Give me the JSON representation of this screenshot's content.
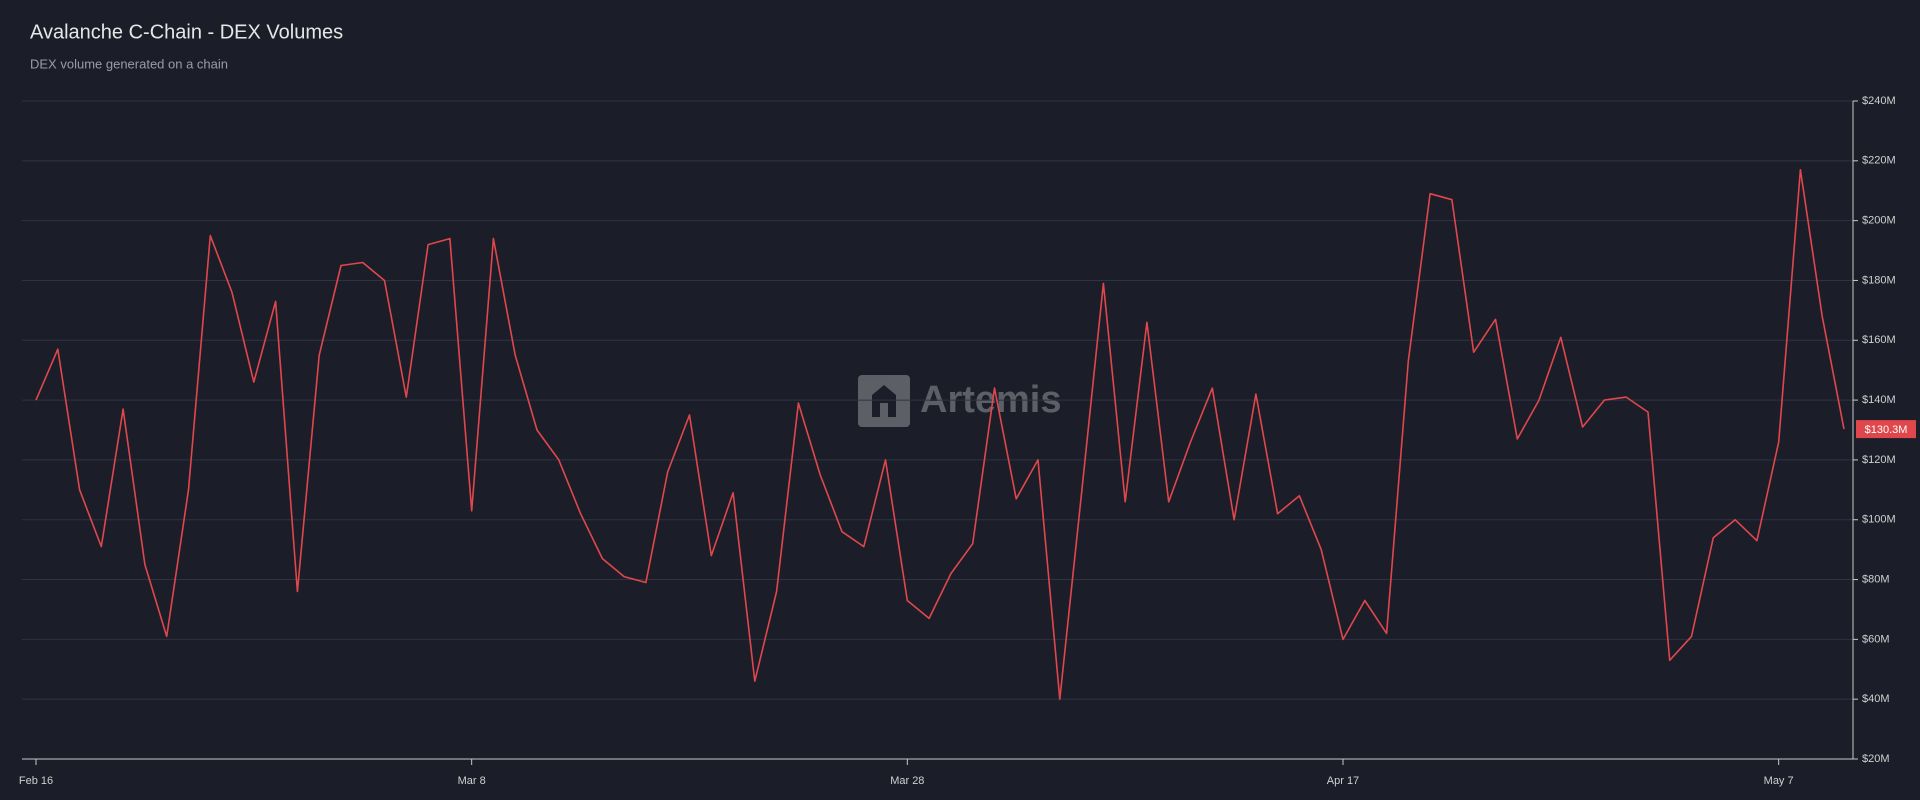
{
  "chart_data": {
    "type": "line",
    "title": "Avalanche C-Chain - DEX Volumes",
    "subtitle": "DEX volume generated on a chain",
    "watermark": "Artemis",
    "categories": [
      "Feb 16",
      "Feb 17",
      "Feb 18",
      "Feb 19",
      "Feb 20",
      "Feb 21",
      "Feb 22",
      "Feb 23",
      "Feb 24",
      "Feb 25",
      "Feb 26",
      "Feb 27",
      "Feb 28",
      "Mar 1",
      "Mar 2",
      "Mar 3",
      "Mar 4",
      "Mar 5",
      "Mar 6",
      "Mar 7",
      "Mar 8",
      "Mar 9",
      "Mar 10",
      "Mar 11",
      "Mar 12",
      "Mar 13",
      "Mar 14",
      "Mar 15",
      "Mar 16",
      "Mar 17",
      "Mar 18",
      "Mar 19",
      "Mar 20",
      "Mar 21",
      "Mar 22",
      "Mar 23",
      "Mar 24",
      "Mar 25",
      "Mar 26",
      "Mar 27",
      "Mar 28",
      "Mar 29",
      "Mar 30",
      "Mar 31",
      "Apr 1",
      "Apr 2",
      "Apr 3",
      "Apr 4",
      "Apr 5",
      "Apr 6",
      "Apr 7",
      "Apr 8",
      "Apr 9",
      "Apr 10",
      "Apr 11",
      "Apr 12",
      "Apr 13",
      "Apr 14",
      "Apr 15",
      "Apr 16",
      "Apr 17",
      "Apr 18",
      "Apr 19",
      "Apr 20",
      "Apr 21",
      "Apr 22",
      "Apr 23",
      "Apr 24",
      "Apr 25",
      "Apr 26",
      "Apr 27",
      "Apr 28",
      "Apr 29",
      "Apr 30",
      "May 1",
      "May 2",
      "May 3",
      "May 4",
      "May 5",
      "May 6",
      "May 7",
      "May 8",
      "May 9",
      "May 10"
    ],
    "series": [
      {
        "name": "DEX Volume",
        "color": "#e0474c",
        "values": [
          140,
          157,
          110,
          91,
          137,
          85,
          61,
          110,
          195,
          176,
          146,
          173,
          76,
          155,
          185,
          186,
          180,
          141,
          192,
          194,
          103,
          194,
          155,
          130,
          120,
          102,
          87,
          81,
          79,
          116,
          135,
          88,
          109,
          46,
          76,
          139,
          115,
          96,
          91,
          120,
          73,
          67,
          82,
          92,
          144,
          107,
          120,
          40,
          109,
          179,
          106,
          166,
          106,
          126,
          144,
          100,
          142,
          102,
          108,
          90,
          60,
          73,
          62,
          153,
          209,
          207,
          156,
          167,
          127,
          140,
          161,
          131,
          140,
          141,
          136,
          53,
          61,
          94,
          100,
          93,
          126,
          217,
          168,
          130.3
        ],
        "value_labels": [
          null,
          null,
          null,
          null,
          null,
          null,
          null,
          null,
          null,
          null,
          null,
          null,
          null,
          null,
          null,
          null,
          null,
          null,
          null,
          null,
          null,
          null,
          null,
          null,
          null,
          null,
          null,
          null,
          null,
          null,
          null,
          null,
          null,
          null,
          null,
          null,
          null,
          null,
          null,
          null,
          null,
          null,
          null,
          null,
          null,
          null,
          null,
          null,
          null,
          null,
          null,
          null,
          null,
          null,
          null,
          null,
          null,
          null,
          null,
          null,
          null,
          null,
          null,
          null,
          null,
          null,
          null,
          null,
          null,
          null,
          null,
          null,
          null,
          null,
          null,
          null,
          null,
          null,
          null,
          null,
          null,
          null,
          null,
          "$130.3M"
        ]
      }
    ],
    "xticks": [
      "Feb 16",
      "Mar 8",
      "Mar 28",
      "Apr 17",
      "May 7"
    ],
    "ylim": [
      20,
      240
    ],
    "yticks": [
      {
        "value": 20,
        "label": "$20M"
      },
      {
        "value": 40,
        "label": "$40M"
      },
      {
        "value": 60,
        "label": "$60M"
      },
      {
        "value": 80,
        "label": "$80M"
      },
      {
        "value": 100,
        "label": "$100M"
      },
      {
        "value": 120,
        "label": "$120M"
      },
      {
        "value": 140,
        "label": "$140M"
      },
      {
        "value": 160,
        "label": "$160M"
      },
      {
        "value": 180,
        "label": "$180M"
      },
      {
        "value": 200,
        "label": "$200M"
      },
      {
        "value": 220,
        "label": "$220M"
      },
      {
        "value": 240,
        "label": "$240M"
      }
    ],
    "grid": true
  }
}
